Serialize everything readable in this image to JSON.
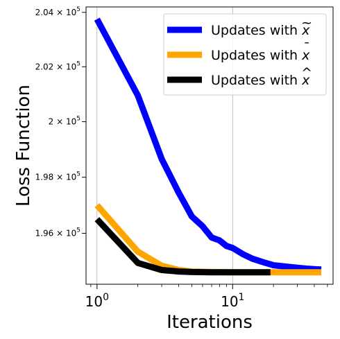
{
  "chart_data": {
    "type": "line",
    "title": "",
    "xlabel": "Iterations",
    "ylabel": "Loss Function",
    "x_scale": "log",
    "y_scale": "log",
    "xlim": [
      0.83,
      55
    ],
    "ylim": [
      194200,
      204200
    ],
    "grid": {
      "x": true,
      "y": false
    },
    "legend_position": "top-right",
    "x_ticks": [
      {
        "value": 1,
        "base": "10",
        "exp": "0"
      },
      {
        "value": 10,
        "base": "10",
        "exp": "1"
      }
    ],
    "y_ticks": [
      {
        "value": 196000,
        "mant": "1.96",
        "exp": "5"
      },
      {
        "value": 198000,
        "mant": "1.98",
        "exp": "5"
      },
      {
        "value": 200000,
        "mant": "2",
        "exp": "5"
      },
      {
        "value": 202000,
        "mant": "2.02",
        "exp": "5"
      },
      {
        "value": 204000,
        "mant": "2.04",
        "exp": "5"
      }
    ],
    "series": [
      {
        "name": "Updates with x̃",
        "legend_prefix": "Updates with ",
        "legend_symbol": "x",
        "legend_accent": "~",
        "color": "#0000ff",
        "x": [
          1,
          2,
          3,
          4,
          5,
          6,
          7,
          8,
          9,
          10,
          12,
          14,
          17,
          20,
          25,
          30,
          35,
          40,
          45
        ],
        "y": [
          203750,
          200950,
          198650,
          197450,
          196600,
          196250,
          195850,
          195750,
          195550,
          195480,
          195250,
          195100,
          194970,
          194870,
          194820,
          194780,
          194750,
          194730,
          194720
        ]
      },
      {
        "name": "Updates with x̄",
        "legend_prefix": "Updates with ",
        "legend_symbol": "x",
        "legend_accent": "¯",
        "color": "#ffa500",
        "x": [
          1,
          2,
          3,
          4,
          5,
          7,
          10,
          15,
          20,
          30,
          45
        ],
        "y": [
          197000,
          195350,
          194850,
          194700,
          194650,
          194630,
          194620,
          194620,
          194620,
          194620,
          194620
        ]
      },
      {
        "name": "Updates with x̂",
        "legend_prefix": "Updates with ",
        "legend_symbol": "x",
        "legend_accent": "^",
        "color": "#000000",
        "x": [
          1,
          2,
          3,
          4,
          5,
          7,
          10,
          15,
          19
        ],
        "y": [
          196500,
          194950,
          194700,
          194650,
          194630,
          194620,
          194620,
          194620,
          194620
        ]
      }
    ]
  }
}
